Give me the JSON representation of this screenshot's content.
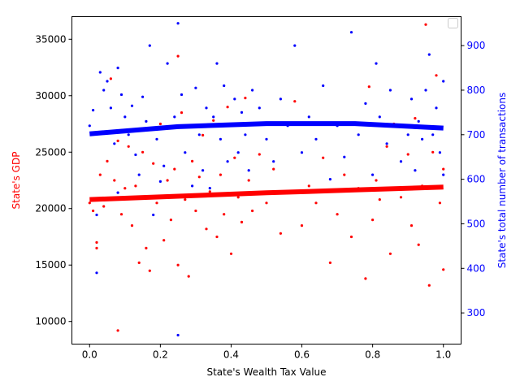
{
  "chart_data": {
    "type": "scatter",
    "title": "",
    "xlabel": "State's Wealth Tax Value",
    "ylabel_left": "State's GDP",
    "ylabel_right": "State's total number of transactions",
    "xlim": [
      -0.05,
      1.05
    ],
    "ylim_left": [
      8000,
      37000
    ],
    "ylim_right": [
      230,
      965
    ],
    "x_ticks": [
      0.0,
      0.2,
      0.4,
      0.6,
      0.8,
      1.0
    ],
    "x_tick_labels": [
      "0.0",
      "0.2",
      "0.4",
      "0.6",
      "0.8",
      "1.0"
    ],
    "y_left_ticks": [
      10000,
      15000,
      20000,
      25000,
      30000,
      35000
    ],
    "y_left_tick_labels": [
      "10000",
      "15000",
      "20000",
      "25000",
      "30000",
      "35000"
    ],
    "y_right_ticks": [
      300,
      400,
      500,
      600,
      700,
      800,
      900
    ],
    "y_right_tick_labels": [
      "300",
      "400",
      "500",
      "600",
      "700",
      "800",
      "900"
    ],
    "grid": false,
    "legend": {
      "placement": "upper-right",
      "entries": []
    },
    "colors": {
      "left_series": "#ff0000",
      "right_series": "#0000ff",
      "axis": "#000000"
    },
    "series": [
      {
        "axis": "left",
        "kind": "scatter",
        "color": "#ff0000",
        "points": [
          [
            0.0,
            20500
          ],
          [
            0.01,
            19800
          ],
          [
            0.02,
            17000
          ],
          [
            0.02,
            16500
          ],
          [
            0.03,
            23000
          ],
          [
            0.04,
            20200
          ],
          [
            0.05,
            24200
          ],
          [
            0.06,
            31500
          ],
          [
            0.07,
            22500
          ],
          [
            0.08,
            9200
          ],
          [
            0.08,
            26000
          ],
          [
            0.09,
            19500
          ],
          [
            0.1,
            21800
          ],
          [
            0.11,
            25500
          ],
          [
            0.12,
            18500
          ],
          [
            0.13,
            22000
          ],
          [
            0.14,
            15200
          ],
          [
            0.15,
            25000
          ],
          [
            0.16,
            16500
          ],
          [
            0.17,
            14500
          ],
          [
            0.18,
            24000
          ],
          [
            0.19,
            20500
          ],
          [
            0.2,
            27500
          ],
          [
            0.21,
            17200
          ],
          [
            0.22,
            22500
          ],
          [
            0.23,
            19000
          ],
          [
            0.24,
            23500
          ],
          [
            0.25,
            33500
          ],
          [
            0.25,
            15000
          ],
          [
            0.26,
            28500
          ],
          [
            0.27,
            20800
          ],
          [
            0.28,
            14000
          ],
          [
            0.29,
            24200
          ],
          [
            0.3,
            19800
          ],
          [
            0.31,
            22800
          ],
          [
            0.32,
            26500
          ],
          [
            0.33,
            18200
          ],
          [
            0.34,
            21500
          ],
          [
            0.35,
            27800
          ],
          [
            0.36,
            17500
          ],
          [
            0.37,
            23000
          ],
          [
            0.38,
            19500
          ],
          [
            0.39,
            29000
          ],
          [
            0.4,
            16000
          ],
          [
            0.41,
            24500
          ],
          [
            0.42,
            21000
          ],
          [
            0.43,
            18800
          ],
          [
            0.44,
            29800
          ],
          [
            0.45,
            22500
          ],
          [
            0.46,
            19800
          ],
          [
            0.48,
            24800
          ],
          [
            0.5,
            20500
          ],
          [
            0.52,
            23500
          ],
          [
            0.54,
            17800
          ],
          [
            0.56,
            21500
          ],
          [
            0.58,
            29500
          ],
          [
            0.6,
            18500
          ],
          [
            0.62,
            22000
          ],
          [
            0.64,
            20500
          ],
          [
            0.66,
            24500
          ],
          [
            0.68,
            15200
          ],
          [
            0.7,
            19500
          ],
          [
            0.72,
            23000
          ],
          [
            0.74,
            17500
          ],
          [
            0.76,
            21800
          ],
          [
            0.78,
            13800
          ],
          [
            0.79,
            30800
          ],
          [
            0.8,
            19000
          ],
          [
            0.81,
            22500
          ],
          [
            0.82,
            20800
          ],
          [
            0.84,
            25500
          ],
          [
            0.85,
            16000
          ],
          [
            0.86,
            27500
          ],
          [
            0.88,
            21000
          ],
          [
            0.9,
            24800
          ],
          [
            0.91,
            18500
          ],
          [
            0.92,
            28000
          ],
          [
            0.93,
            16800
          ],
          [
            0.94,
            22000
          ],
          [
            0.95,
            36300
          ],
          [
            0.96,
            13200
          ],
          [
            0.97,
            25000
          ],
          [
            0.98,
            31800
          ],
          [
            0.99,
            20500
          ],
          [
            1.0,
            14600
          ],
          [
            1.0,
            23500
          ]
        ]
      },
      {
        "axis": "left",
        "kind": "trend",
        "color": "#ff0000",
        "x": [
          0.0,
          0.25,
          0.5,
          0.75,
          1.0
        ],
        "y": [
          20800,
          21100,
          21400,
          21650,
          21900
        ]
      },
      {
        "axis": "right",
        "kind": "scatter",
        "color": "#0000ff",
        "points": [
          [
            0.0,
            720
          ],
          [
            0.01,
            755
          ],
          [
            0.02,
            520
          ],
          [
            0.02,
            390
          ],
          [
            0.03,
            840
          ],
          [
            0.04,
            800
          ],
          [
            0.05,
            820
          ],
          [
            0.06,
            760
          ],
          [
            0.07,
            680
          ],
          [
            0.08,
            850
          ],
          [
            0.08,
            570
          ],
          [
            0.09,
            790
          ],
          [
            0.1,
            740
          ],
          [
            0.11,
            700
          ],
          [
            0.12,
            765
          ],
          [
            0.13,
            655
          ],
          [
            0.14,
            610
          ],
          [
            0.15,
            785
          ],
          [
            0.16,
            730
          ],
          [
            0.17,
            900
          ],
          [
            0.18,
            520
          ],
          [
            0.19,
            690
          ],
          [
            0.2,
            595
          ],
          [
            0.21,
            630
          ],
          [
            0.22,
            860
          ],
          [
            0.23,
            560
          ],
          [
            0.24,
            740
          ],
          [
            0.25,
            250
          ],
          [
            0.25,
            950
          ],
          [
            0.26,
            790
          ],
          [
            0.27,
            660
          ],
          [
            0.28,
            720
          ],
          [
            0.29,
            585
          ],
          [
            0.3,
            805
          ],
          [
            0.31,
            700
          ],
          [
            0.32,
            620
          ],
          [
            0.33,
            760
          ],
          [
            0.34,
            580
          ],
          [
            0.35,
            740
          ],
          [
            0.36,
            860
          ],
          [
            0.37,
            690
          ],
          [
            0.38,
            810
          ],
          [
            0.39,
            640
          ],
          [
            0.4,
            720
          ],
          [
            0.41,
            780
          ],
          [
            0.42,
            660
          ],
          [
            0.43,
            750
          ],
          [
            0.44,
            700
          ],
          [
            0.45,
            620
          ],
          [
            0.46,
            800
          ],
          [
            0.48,
            760
          ],
          [
            0.5,
            690
          ],
          [
            0.52,
            640
          ],
          [
            0.54,
            780
          ],
          [
            0.56,
            720
          ],
          [
            0.58,
            900
          ],
          [
            0.6,
            660
          ],
          [
            0.62,
            740
          ],
          [
            0.64,
            690
          ],
          [
            0.66,
            810
          ],
          [
            0.68,
            600
          ],
          [
            0.7,
            720
          ],
          [
            0.72,
            650
          ],
          [
            0.74,
            930
          ],
          [
            0.76,
            700
          ],
          [
            0.78,
            770
          ],
          [
            0.8,
            610
          ],
          [
            0.81,
            860
          ],
          [
            0.82,
            740
          ],
          [
            0.84,
            680
          ],
          [
            0.85,
            800
          ],
          [
            0.86,
            720
          ],
          [
            0.88,
            640
          ],
          [
            0.9,
            700
          ],
          [
            0.91,
            780
          ],
          [
            0.92,
            620
          ],
          [
            0.93,
            730
          ],
          [
            0.94,
            690
          ],
          [
            0.95,
            800
          ],
          [
            0.96,
            880
          ],
          [
            0.97,
            700
          ],
          [
            0.98,
            760
          ],
          [
            0.99,
            660
          ],
          [
            1.0,
            820
          ],
          [
            1.0,
            610
          ]
        ]
      },
      {
        "axis": "right",
        "kind": "trend",
        "color": "#0000ff",
        "x": [
          0.0,
          0.25,
          0.5,
          0.75,
          1.0
        ],
        "y": [
          702,
          718,
          725,
          725,
          715
        ]
      }
    ]
  }
}
